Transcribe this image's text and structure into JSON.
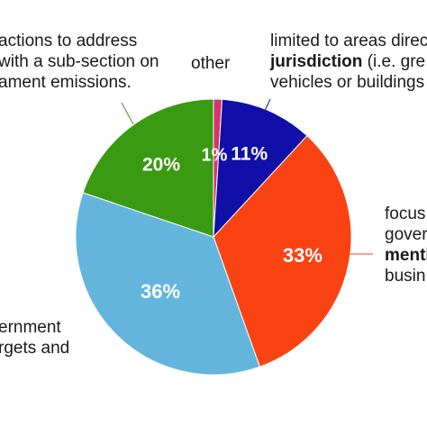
{
  "chart_data": {
    "type": "pie",
    "start_angle_deg": 0,
    "direction": "clockwise",
    "slices": [
      {
        "label_key": "other",
        "value": 1,
        "display": "1%",
        "color": "#d6336c"
      },
      {
        "label_key": "limited",
        "value": 11,
        "display": "11%",
        "color": "#1010a8"
      },
      {
        "label_key": "focus",
        "value": 33,
        "display": "33%",
        "color": "#fa4313"
      },
      {
        "label_key": "government",
        "value": 36,
        "display": "36%",
        "color": "#63b5dc"
      },
      {
        "label_key": "actions",
        "value": 20,
        "display": "20%",
        "color": "#3a9a12"
      }
    ],
    "label_colors": {
      "1%": "#d6336c",
      "default": "#ffffff"
    }
  },
  "labels": {
    "actions": {
      "l1": "actions to address",
      "l2": "with a sub-section on",
      "l3": "ament emissions."
    },
    "other": {
      "l1": "other"
    },
    "limited": {
      "l1": "limited to areas direc",
      "l2_bold": "jurisdiction",
      "l2_rest": " (i.e. gre",
      "l3": "vehicles or buildings"
    },
    "focus": {
      "l1": "focus",
      "l2": "gover",
      "l3_bold": "menti",
      "l4": "busin"
    },
    "government": {
      "l1": "ernment",
      "l2": "rgets and"
    }
  }
}
